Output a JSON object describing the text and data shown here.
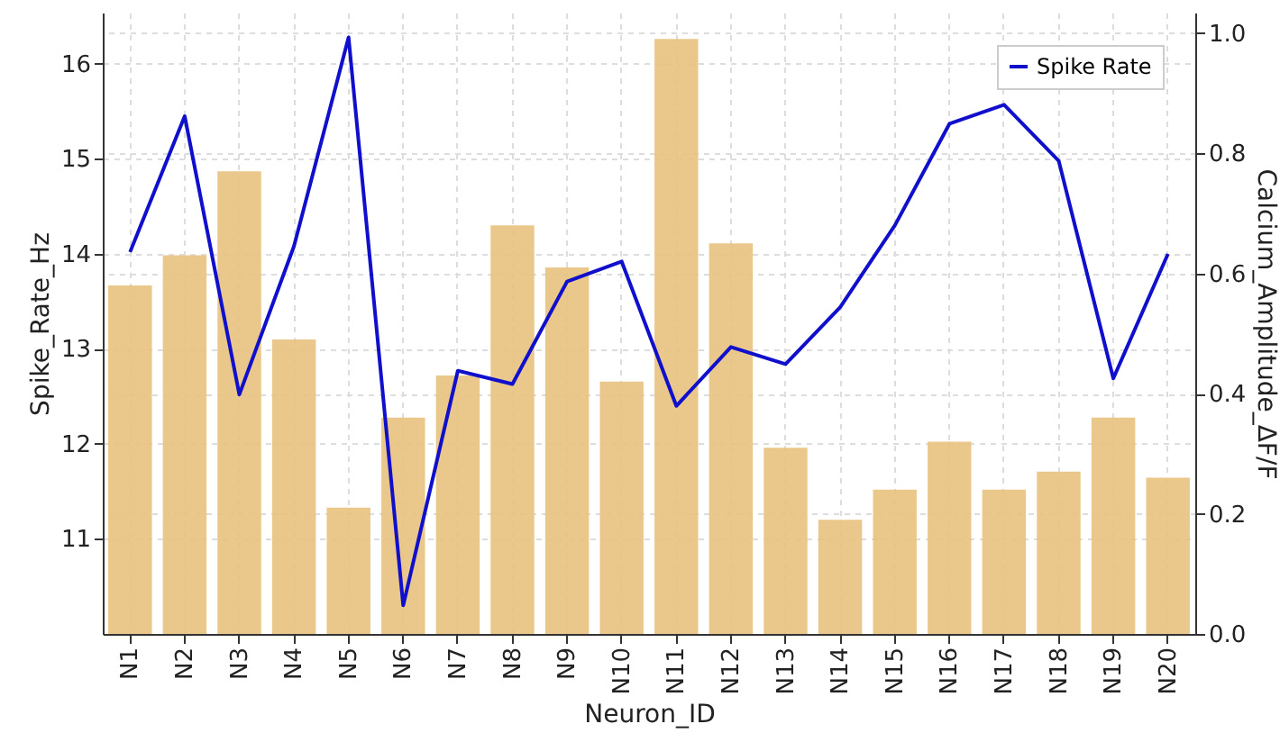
{
  "chart_data": {
    "type": "bar",
    "xlabel": "Neuron_ID",
    "ylabel": "Spike_Rate_Hz",
    "y2label": "Calcium_Amplitude_ΔF/F",
    "categories": [
      "N1",
      "N2",
      "N3",
      "N4",
      "N5",
      "N6",
      "N7",
      "N8",
      "N9",
      "N10",
      "N11",
      "N12",
      "N13",
      "N14",
      "N15",
      "N16",
      "N17",
      "N18",
      "N19",
      "N20"
    ],
    "series": [
      {
        "axis": "y2",
        "color": "#e8c27e",
        "values": [
          0.58,
          0.63,
          0.77,
          0.49,
          0.21,
          0.36,
          0.43,
          0.68,
          0.61,
          0.42,
          0.99,
          0.65,
          0.31,
          0.19,
          0.24,
          0.32,
          0.24,
          0.27,
          0.36,
          0.26
        ]
      },
      {
        "type": "line",
        "name": "Spike Rate",
        "color": "#1010cc",
        "values": [
          14.02,
          15.45,
          12.52,
          14.08,
          16.28,
          10.3,
          12.77,
          12.63,
          13.71,
          13.92,
          12.4,
          13.02,
          12.84,
          13.44,
          14.3,
          15.37,
          15.57,
          14.98,
          12.69,
          14.0
        ]
      }
    ],
    "ylim": [
      10,
      16.54
    ],
    "yticks": [
      11,
      12,
      13,
      14,
      15,
      16
    ],
    "y2lim": [
      0,
      1.034
    ],
    "y2ticks": [
      {
        "value": 0,
        "label": "0.0"
      },
      0.2,
      0.4,
      0.6,
      0.8,
      {
        "value": 1,
        "label": "1.0"
      }
    ],
    "grid": true,
    "legend": "top right"
  }
}
